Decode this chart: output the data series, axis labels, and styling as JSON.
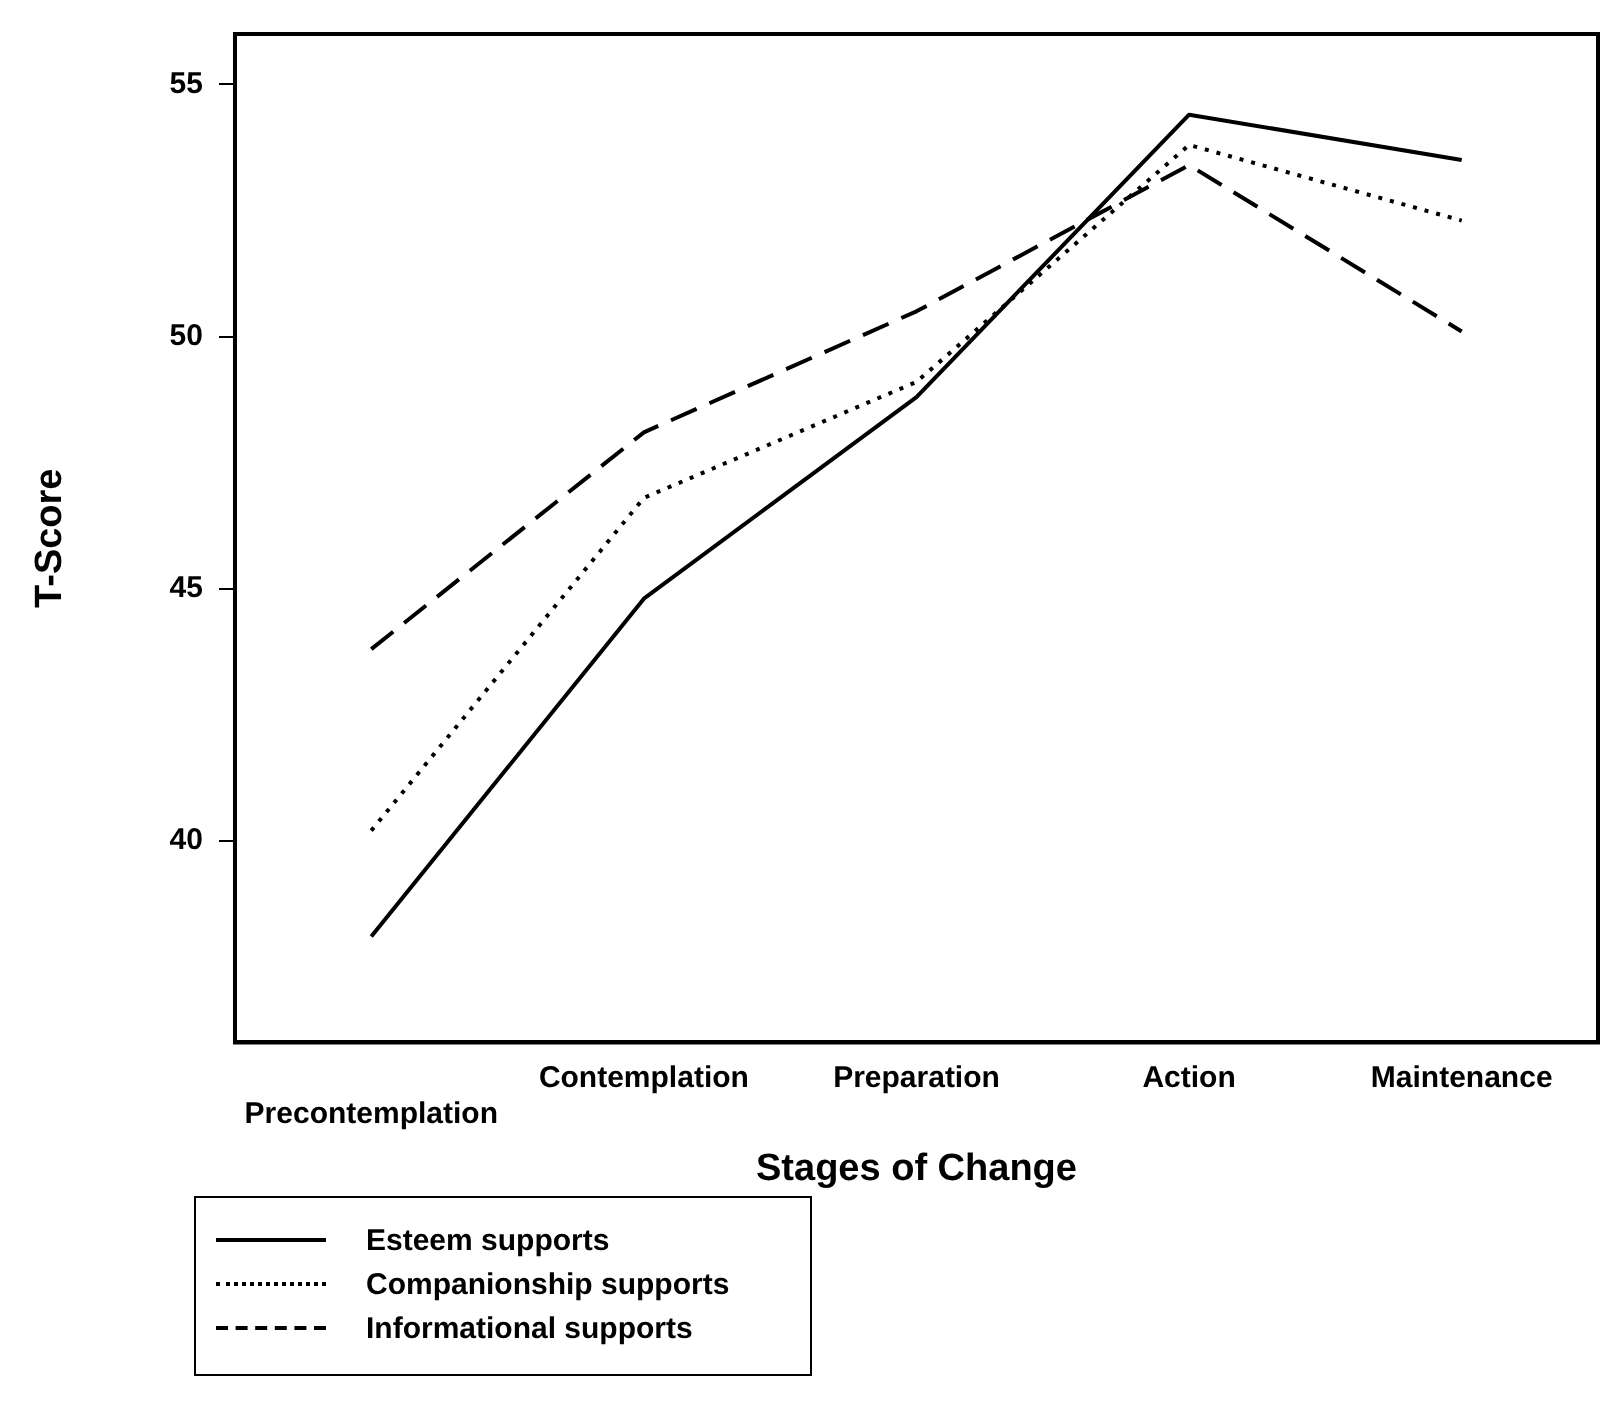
{
  "chart_data": {
    "type": "line",
    "xlabel": "Stages of Change",
    "ylabel": "T-Score",
    "categories": [
      "Precontemplation",
      "Contemplation",
      "Preparation",
      "Action",
      "Maintenance"
    ],
    "ylim": [
      36,
      56
    ],
    "yticks": [
      40,
      45,
      50,
      55
    ],
    "grid": false,
    "legend": "bottom left",
    "marker": "none",
    "series": [
      {
        "name": "Esteem supports",
        "color": "#000000",
        "line_style": "solid",
        "values": [
          38.1,
          44.8,
          48.8,
          54.4,
          53.5
        ]
      },
      {
        "name": "Companionship supports",
        "color": "#000000",
        "line_style": "dotted",
        "values": [
          40.2,
          46.8,
          49.1,
          53.8,
          52.3
        ]
      },
      {
        "name": "Informational supports",
        "color": "#000000",
        "line_style": "dashed",
        "values": [
          43.8,
          48.1,
          50.5,
          53.4,
          50.1
        ]
      }
    ]
  }
}
